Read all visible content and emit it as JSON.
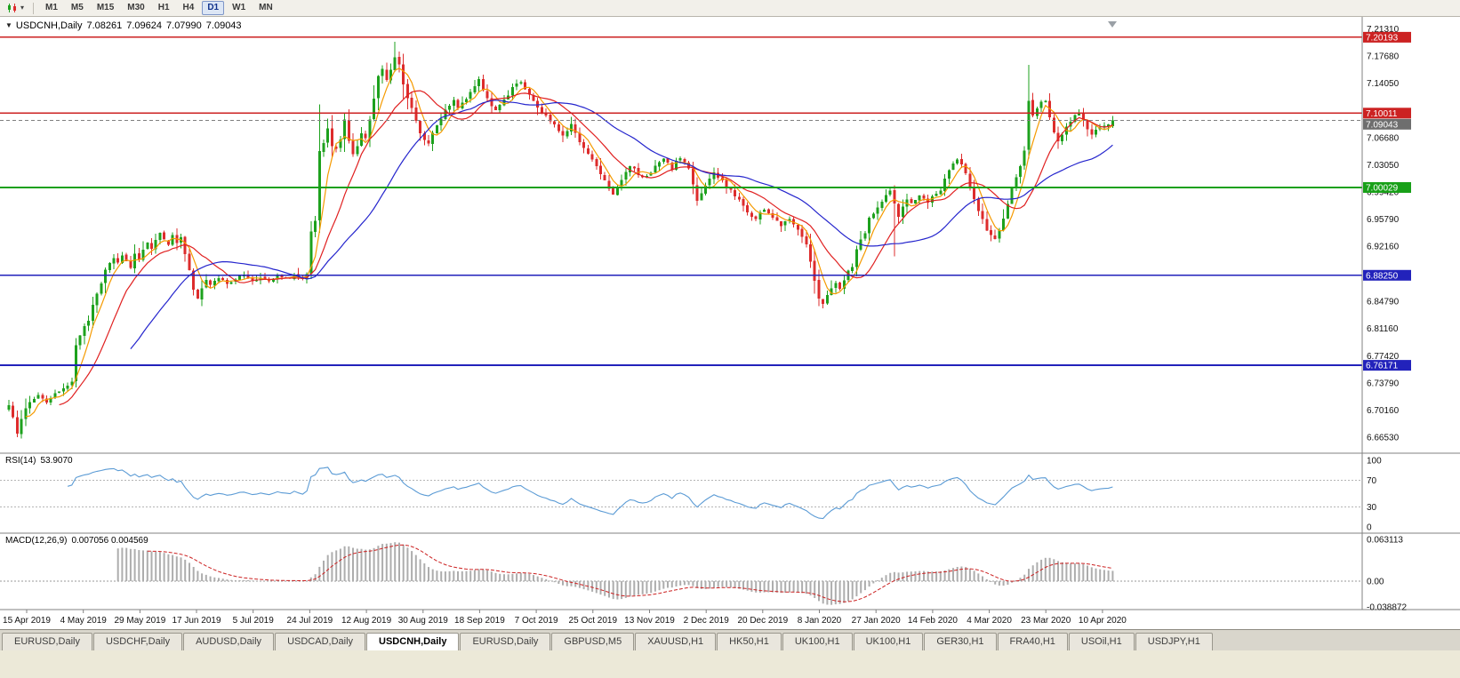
{
  "toolbar": {
    "timeframes": [
      "M1",
      "M5",
      "M15",
      "M30",
      "H1",
      "H4",
      "D1",
      "W1",
      "MN"
    ],
    "active_timeframe": "D1"
  },
  "chart": {
    "collapse_icon": "▼",
    "symbol_period": "USDCNH,Daily",
    "open": "7.08261",
    "high": "7.09624",
    "low": "7.07990",
    "close": "7.09043"
  },
  "price_axis": {
    "labels": [
      "7.21310",
      "7.17680",
      "7.14050",
      "7.06680",
      "7.03050",
      "6.99420",
      "6.95790",
      "6.92160",
      "6.84790",
      "6.81160",
      "6.77420",
      "6.73790",
      "6.70160",
      "6.66530"
    ],
    "badges": [
      {
        "text": "7.20193",
        "value": 7.20193,
        "color": "#cc2222"
      },
      {
        "text": "7.10011",
        "value": 7.10011,
        "color": "#cc2222"
      },
      {
        "text": "7.09043",
        "value": 7.09043,
        "color": "#6e6e6e"
      },
      {
        "text": "7.00029",
        "value": 7.00029,
        "color": "#18a018"
      },
      {
        "text": "6.88250",
        "value": 6.8825,
        "color": "#2222bb"
      },
      {
        "text": "6.76171",
        "value": 6.76171,
        "color": "#2222bb"
      }
    ]
  },
  "levels": [
    {
      "value": 7.20193,
      "color": "#cc2222",
      "width": 1.4
    },
    {
      "value": 7.10011,
      "color": "#cc2222",
      "width": 1.4
    },
    {
      "value": 7.00029,
      "color": "#18a018",
      "width": 1.6
    },
    {
      "value": 6.8825,
      "color": "#2222bb",
      "width": 1.8
    },
    {
      "value": 6.76171,
      "color": "#2222bb",
      "width": 1.8
    }
  ],
  "current_price_line": {
    "value": 7.09043,
    "color": "#808080"
  },
  "rsi_panel": {
    "label": "RSI(14)",
    "value": "53.9070",
    "axis_labels": [
      "100",
      "70",
      "30",
      "0"
    ],
    "guide_levels": [
      70,
      30
    ],
    "line_color": "#5b9bd5"
  },
  "macd_panel": {
    "label": "MACD(12,26,9)",
    "values": "0.007056 0.004569",
    "axis_labels": [
      "0.063113",
      "0.00",
      "-0.038872"
    ],
    "axis_max": 0.063113,
    "axis_min": -0.038872,
    "histogram_color": "#adadad",
    "signal_color": "#cc2222"
  },
  "date_axis": [
    "15 Apr 2019",
    "4 May 2019",
    "29 May 2019",
    "17 Jun 2019",
    "5 Jul 2019",
    "24 Jul 2019",
    "12 Aug 2019",
    "30 Aug 2019",
    "18 Sep 2019",
    "7 Oct 2019",
    "25 Oct 2019",
    "13 Nov 2019",
    "2 Dec 2019",
    "20 Dec 2019",
    "8 Jan 2020",
    "27 Jan 2020",
    "14 Feb 2020",
    "4 Mar 2020",
    "23 Mar 2020",
    "10 Apr 2020"
  ],
  "tabs": {
    "items": [
      "EURUSD,Daily",
      "USDCHF,Daily",
      "AUDUSD,Daily",
      "USDCAD,Daily",
      "USDCNH,Daily",
      "EURUSD,Daily",
      "GBPUSD,M5",
      "XAUUSD,H1",
      "HK50,H1",
      "UK100,H1",
      "UK100,H1",
      "GER30,H1",
      "FRA40,H1",
      "USOil,H1",
      "USDJPY,H1"
    ],
    "active_index": 4
  },
  "chart_data": {
    "type": "candlestick",
    "symbol": "USDCNH",
    "period": "Daily",
    "visible_price_range": [
      6.6462,
      7.228
    ],
    "candle_count": 264,
    "up_color": "#1da11d",
    "down_color": "#dd2c2c",
    "moving_averages": [
      {
        "name": "fast",
        "color": "#f59a00"
      },
      {
        "name": "medium",
        "color": "#e02020"
      },
      {
        "name": "slow",
        "color": "#2525cd"
      }
    ],
    "key_levels": [
      7.20193,
      7.10011,
      7.00029,
      6.8825,
      6.76171
    ],
    "close_path_anchors": [
      [
        0,
        6.708
      ],
      [
        1,
        6.69
      ],
      [
        2,
        6.672
      ],
      [
        3,
        6.692
      ],
      [
        5,
        6.712
      ],
      [
        7,
        6.722
      ],
      [
        9,
        6.713
      ],
      [
        11,
        6.722
      ],
      [
        13,
        6.729
      ],
      [
        15,
        6.742
      ],
      [
        16,
        6.79
      ],
      [
        17,
        6.8
      ],
      [
        18,
        6.812
      ],
      [
        19,
        6.823
      ],
      [
        20,
        6.843
      ],
      [
        21,
        6.86
      ],
      [
        22,
        6.873
      ],
      [
        23,
        6.888
      ],
      [
        24,
        6.898
      ],
      [
        25,
        6.906
      ],
      [
        26,
        6.898
      ],
      [
        27,
        6.91
      ],
      [
        28,
        6.902
      ],
      [
        29,
        6.893
      ],
      [
        30,
        6.912
      ],
      [
        31,
        6.905
      ],
      [
        32,
        6.918
      ],
      [
        33,
        6.926
      ],
      [
        34,
        6.92
      ],
      [
        35,
        6.93
      ],
      [
        36,
        6.94
      ],
      [
        37,
        6.932
      ],
      [
        38,
        6.925
      ],
      [
        39,
        6.935
      ],
      [
        40,
        6.928
      ],
      [
        41,
        6.935
      ],
      [
        42,
        6.912
      ],
      [
        43,
        6.888
      ],
      [
        44,
        6.862
      ],
      [
        45,
        6.85
      ],
      [
        46,
        6.866
      ],
      [
        47,
        6.876
      ],
      [
        48,
        6.87
      ],
      [
        50,
        6.878
      ],
      [
        52,
        6.872
      ],
      [
        54,
        6.878
      ],
      [
        56,
        6.883
      ],
      [
        58,
        6.874
      ],
      [
        60,
        6.88
      ],
      [
        62,
        6.876
      ],
      [
        64,
        6.884
      ],
      [
        66,
        6.878
      ],
      [
        68,
        6.882
      ],
      [
        70,
        6.878
      ],
      [
        71,
        6.886
      ],
      [
        72,
        6.943
      ],
      [
        73,
        6.957
      ],
      [
        74,
        7.048
      ],
      [
        75,
        7.06
      ],
      [
        76,
        7.078
      ],
      [
        77,
        7.056
      ],
      [
        78,
        7.052
      ],
      [
        79,
        7.066
      ],
      [
        80,
        7.09
      ],
      [
        81,
        7.062
      ],
      [
        82,
        7.044
      ],
      [
        83,
        7.058
      ],
      [
        84,
        7.072
      ],
      [
        85,
        7.066
      ],
      [
        86,
        7.09
      ],
      [
        87,
        7.12
      ],
      [
        88,
        7.152
      ],
      [
        89,
        7.16
      ],
      [
        90,
        7.146
      ],
      [
        91,
        7.158
      ],
      [
        92,
        7.176
      ],
      [
        93,
        7.166
      ],
      [
        94,
        7.14
      ],
      [
        95,
        7.122
      ],
      [
        96,
        7.108
      ],
      [
        97,
        7.09
      ],
      [
        98,
        7.074
      ],
      [
        99,
        7.066
      ],
      [
        100,
        7.058
      ],
      [
        101,
        7.072
      ],
      [
        102,
        7.082
      ],
      [
        103,
        7.094
      ],
      [
        104,
        7.104
      ],
      [
        105,
        7.112
      ],
      [
        106,
        7.118
      ],
      [
        107,
        7.108
      ],
      [
        108,
        7.112
      ],
      [
        109,
        7.12
      ],
      [
        110,
        7.128
      ],
      [
        111,
        7.138
      ],
      [
        112,
        7.146
      ],
      [
        113,
        7.132
      ],
      [
        114,
        7.12
      ],
      [
        115,
        7.108
      ],
      [
        116,
        7.102
      ],
      [
        117,
        7.11
      ],
      [
        118,
        7.118
      ],
      [
        119,
        7.126
      ],
      [
        120,
        7.134
      ],
      [
        121,
        7.14
      ],
      [
        122,
        7.142
      ],
      [
        123,
        7.134
      ],
      [
        124,
        7.126
      ],
      [
        125,
        7.116
      ],
      [
        126,
        7.108
      ],
      [
        127,
        7.102
      ],
      [
        128,
        7.096
      ],
      [
        129,
        7.09
      ],
      [
        130,
        7.086
      ],
      [
        131,
        7.078
      ],
      [
        132,
        7.07
      ],
      [
        133,
        7.078
      ],
      [
        134,
        7.084
      ],
      [
        135,
        7.072
      ],
      [
        136,
        7.062
      ],
      [
        137,
        7.054
      ],
      [
        138,
        7.046
      ],
      [
        139,
        7.038
      ],
      [
        140,
        7.03
      ],
      [
        141,
        7.02
      ],
      [
        142,
        7.01
      ],
      [
        143,
        7.0
      ],
      [
        144,
        6.993
      ],
      [
        145,
        7.002
      ],
      [
        146,
        7.012
      ],
      [
        147,
        7.022
      ],
      [
        148,
        7.03
      ],
      [
        149,
        7.024
      ],
      [
        150,
        7.018
      ],
      [
        151,
        7.012
      ],
      [
        152,
        7.016
      ],
      [
        153,
        7.022
      ],
      [
        154,
        7.028
      ],
      [
        155,
        7.034
      ],
      [
        156,
        7.038
      ],
      [
        157,
        7.032
      ],
      [
        158,
        7.026
      ],
      [
        159,
        7.034
      ],
      [
        160,
        7.04
      ],
      [
        161,
        7.034
      ],
      [
        162,
        7.026
      ],
      [
        163,
        7.004
      ],
      [
        164,
        6.984
      ],
      [
        165,
        6.992
      ],
      [
        166,
        7.002
      ],
      [
        167,
        7.012
      ],
      [
        168,
        7.02
      ],
      [
        169,
        7.014
      ],
      [
        170,
        7.008
      ],
      [
        171,
        7.002
      ],
      [
        172,
        6.996
      ],
      [
        173,
        6.99
      ],
      [
        174,
        6.984
      ],
      [
        175,
        6.976
      ],
      [
        176,
        6.968
      ],
      [
        177,
        6.962
      ],
      [
        178,
        6.958
      ],
      [
        179,
        6.966
      ],
      [
        180,
        6.972
      ],
      [
        181,
        6.966
      ],
      [
        182,
        6.96
      ],
      [
        183,
        6.954
      ],
      [
        184,
        6.95
      ],
      [
        185,
        6.956
      ],
      [
        186,
        6.96
      ],
      [
        187,
        6.952
      ],
      [
        188,
        6.944
      ],
      [
        189,
        6.936
      ],
      [
        190,
        6.926
      ],
      [
        191,
        6.902
      ],
      [
        192,
        6.874
      ],
      [
        193,
        6.852
      ],
      [
        194,
        6.846
      ],
      [
        195,
        6.856
      ],
      [
        196,
        6.864
      ],
      [
        197,
        6.872
      ],
      [
        198,
        6.866
      ],
      [
        199,
        6.874
      ],
      [
        200,
        6.888
      ],
      [
        201,
        6.896
      ],
      [
        202,
        6.916
      ],
      [
        203,
        6.93
      ],
      [
        204,
        6.938
      ],
      [
        205,
        6.958
      ],
      [
        206,
        6.966
      ],
      [
        207,
        6.972
      ],
      [
        208,
        6.98
      ],
      [
        209,
        6.99
      ],
      [
        210,
        6.998
      ],
      [
        211,
        6.978
      ],
      [
        212,
        6.962
      ],
      [
        213,
        6.974
      ],
      [
        214,
        6.984
      ],
      [
        215,
        6.978
      ],
      [
        216,
        6.984
      ],
      [
        217,
        6.99
      ],
      [
        218,
        6.984
      ],
      [
        219,
        6.978
      ],
      [
        220,
        6.986
      ],
      [
        221,
        6.992
      ],
      [
        222,
        6.998
      ],
      [
        223,
        7.012
      ],
      [
        224,
        7.026
      ],
      [
        225,
        7.034
      ],
      [
        226,
        7.038
      ],
      [
        227,
        7.03
      ],
      [
        228,
        7.018
      ],
      [
        229,
        6.998
      ],
      [
        230,
        6.984
      ],
      [
        231,
        6.97
      ],
      [
        232,
        6.956
      ],
      [
        233,
        6.944
      ],
      [
        234,
        6.936
      ],
      [
        235,
        6.93
      ],
      [
        236,
        6.944
      ],
      [
        237,
        6.958
      ],
      [
        238,
        6.978
      ],
      [
        239,
        7.0
      ],
      [
        240,
        7.014
      ],
      [
        241,
        7.028
      ],
      [
        242,
        7.048
      ],
      [
        243,
        7.118
      ],
      [
        244,
        7.098
      ],
      [
        245,
        7.108
      ],
      [
        246,
        7.114
      ],
      [
        247,
        7.118
      ],
      [
        248,
        7.094
      ],
      [
        249,
        7.076
      ],
      [
        250,
        7.06
      ],
      [
        251,
        7.07
      ],
      [
        252,
        7.08
      ],
      [
        253,
        7.09
      ],
      [
        254,
        7.096
      ],
      [
        255,
        7.102
      ],
      [
        256,
        7.088
      ],
      [
        257,
        7.078
      ],
      [
        258,
        7.07
      ],
      [
        259,
        7.076
      ],
      [
        260,
        7.08
      ],
      [
        261,
        7.084
      ],
      [
        262,
        7.086
      ],
      [
        263,
        7.09
      ]
    ],
    "key_extremes": [
      {
        "day": 2,
        "low": 6.6655
      },
      {
        "day": 74,
        "high": 7.112
      },
      {
        "day": 92,
        "high": 7.196
      },
      {
        "day": 193,
        "low": 6.841
      },
      {
        "day": 211,
        "low": 6.908
      },
      {
        "day": 243,
        "high": 7.165
      }
    ],
    "last_candle": {
      "open": 7.08261,
      "high": 7.09624,
      "low": 7.0799,
      "close": 7.09043
    }
  }
}
